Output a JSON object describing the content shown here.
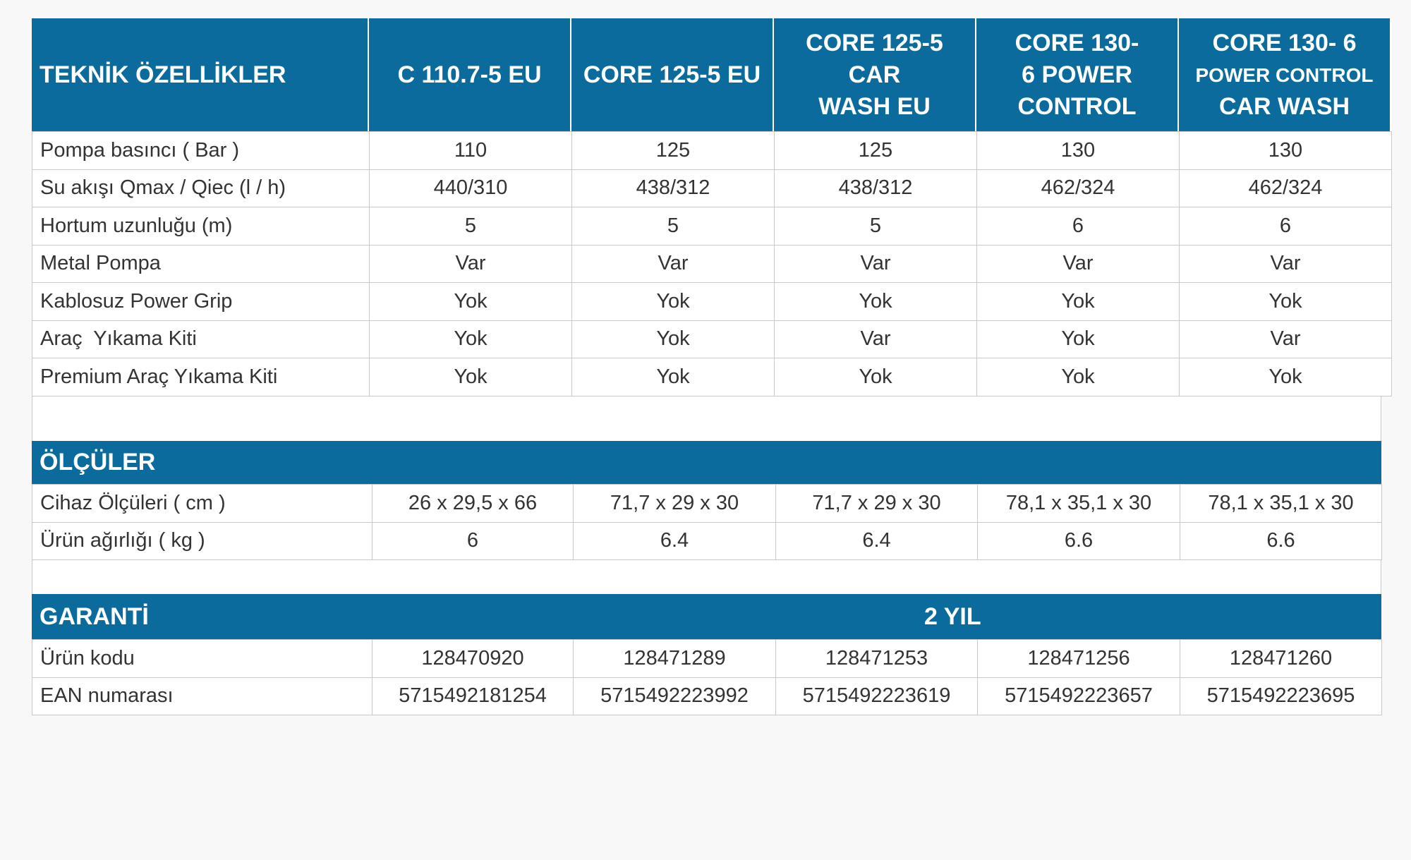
{
  "spec_table": {
    "header": [
      [
        "TEKNİK ÖZELLİKLER"
      ],
      [
        "C 110.7-5 EU"
      ],
      [
        "CORE 125-5 EU"
      ],
      [
        "CORE 125-5",
        "CAR",
        "WASH EU"
      ],
      [
        "CORE 130-",
        "6 POWER",
        "CONTROL"
      ],
      [
        "CORE 130- 6",
        "POWER CONTROL",
        "CAR WASH"
      ]
    ],
    "rows": [
      [
        "Pompa basıncı ( Bar )",
        "110",
        "125",
        "125",
        "130",
        "130"
      ],
      [
        "Su akışı Qmax / Qiec (l / h)",
        "440/310",
        "438/312",
        "438/312",
        "462/324",
        "462/324"
      ],
      [
        "Hortum uzunluğu (m)",
        "5",
        "5",
        "5",
        "6",
        "6"
      ],
      [
        "Metal Pompa",
        "Var",
        "Var",
        "Var",
        "Var",
        "Var"
      ],
      [
        "Kablosuz Power Grip",
        "Yok",
        "Yok",
        "Yok",
        "Yok",
        "Yok"
      ],
      [
        "Araç  Yıkama Kiti",
        "Yok",
        "Yok",
        "Var",
        "Yok",
        "Var"
      ],
      [
        "Premium Araç Yıkama Kiti",
        "Yok",
        "Yok",
        "Yok",
        "Yok",
        "Yok"
      ]
    ]
  },
  "dimensions": {
    "title": "ÖLÇÜLER",
    "rows": [
      [
        "Cihaz Ölçüleri ( cm )",
        "26 x 29,5 x 66",
        "71,7 x 29 x 30",
        "71,7 x 29 x 30",
        "78,1 x 35,1 x 30",
        "78,1 x 35,1 x 30"
      ],
      [
        "Ürün ağırlığı ( kg )",
        "6",
        "6.4",
        "6.4",
        "6.6",
        "6.6"
      ]
    ]
  },
  "warranty": {
    "title": "GARANTİ",
    "value": "2 YIL",
    "rows": [
      [
        "Ürün kodu",
        "128470920",
        "128471289",
        "128471253",
        "128471256",
        "128471260"
      ],
      [
        "EAN numarası",
        "5715492181254",
        "5715492223992",
        "5715492223619",
        "5715492223657",
        "5715492223695"
      ]
    ]
  }
}
